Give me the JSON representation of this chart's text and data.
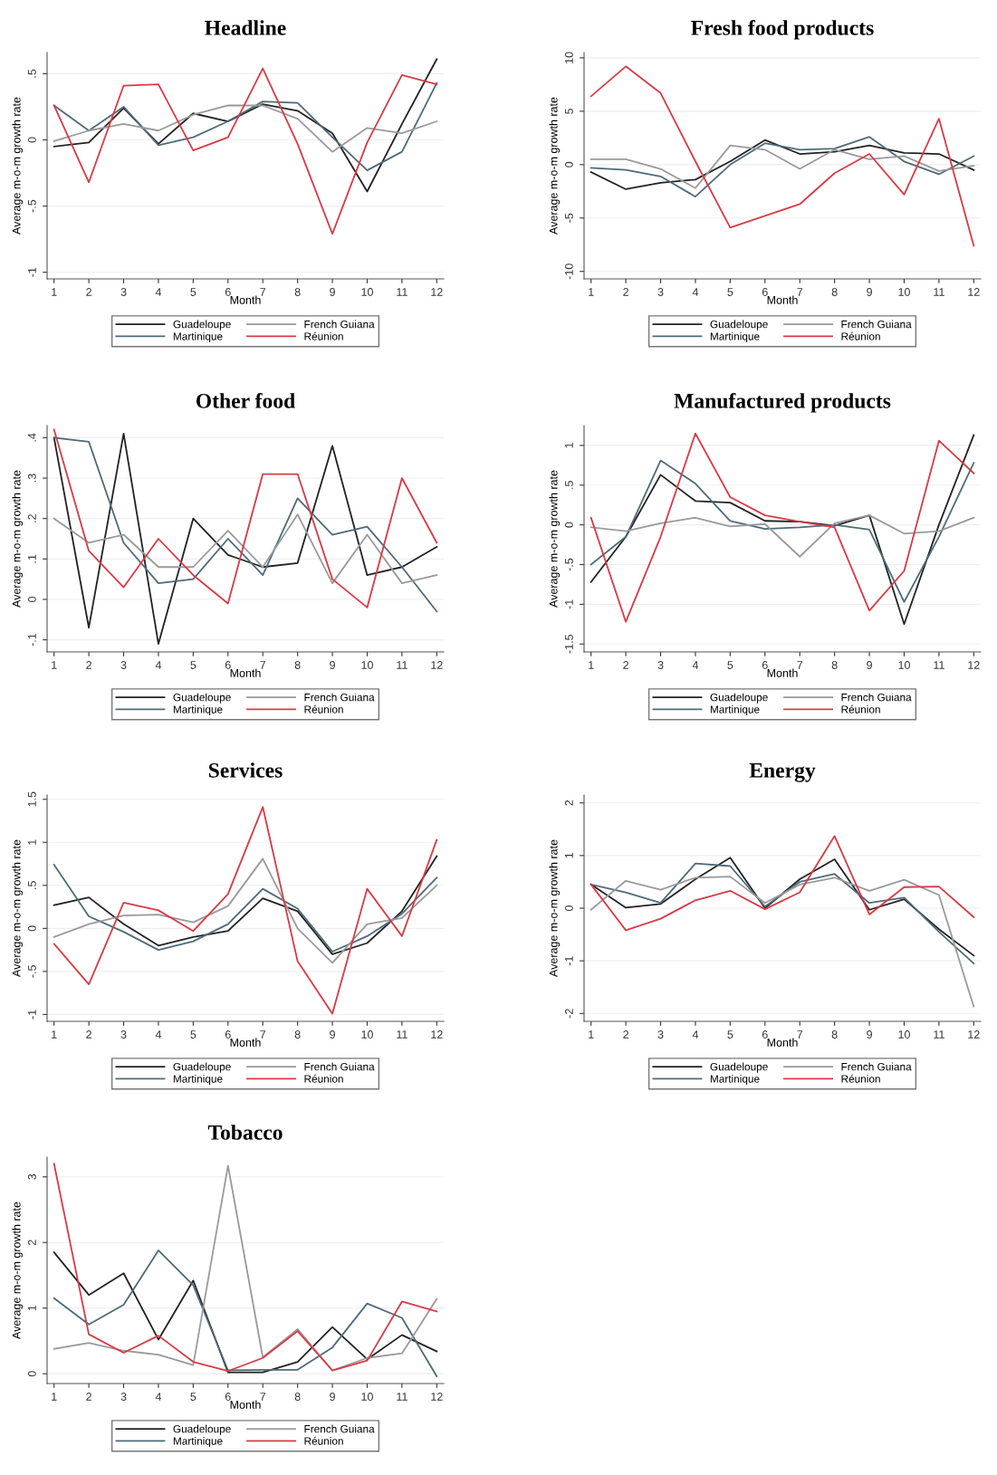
{
  "chart_data": [
    {
      "type": "line",
      "title": "Headline",
      "xlabel": "Month",
      "ylabel": "Average m-o-m growth rate",
      "x": [
        1,
        2,
        3,
        4,
        5,
        6,
        7,
        8,
        9,
        10,
        11,
        12
      ],
      "xlim": [
        0.8,
        12.2
      ],
      "xticks": [
        1,
        2,
        3,
        4,
        5,
        6,
        7,
        8,
        9,
        10,
        11,
        12
      ],
      "ylim": [
        -1.05,
        0.66
      ],
      "yticks": [
        {
          "value": -1,
          "label": "-1"
        },
        {
          "value": -0.5,
          "label": "-.5"
        },
        0,
        {
          "value": 0.5,
          "label": ".5"
        }
      ],
      "grid": "y",
      "legend": "bottom",
      "line_style": "solid",
      "series": [
        {
          "name": "Guadeloupe",
          "color": "#222222",
          "values": [
            -0.05,
            -0.02,
            0.24,
            -0.03,
            0.2,
            0.14,
            0.27,
            0.22,
            0.05,
            -0.39,
            0.12,
            0.61
          ]
        },
        {
          "name": "Martinique",
          "color": "#4d6b7a",
          "values": [
            0.26,
            0.07,
            0.25,
            -0.04,
            0.02,
            0.14,
            0.29,
            0.28,
            0.02,
            -0.23,
            -0.09,
            0.43
          ]
        },
        {
          "name": "French Guiana",
          "color": "#9a9a9a",
          "values": [
            -0.01,
            0.07,
            0.12,
            0.07,
            0.19,
            0.26,
            0.26,
            0.16,
            -0.09,
            0.09,
            0.05,
            0.14
          ]
        },
        {
          "name": "Réunion",
          "color": "#d93a45",
          "values": [
            0.26,
            -0.32,
            0.41,
            0.42,
            -0.08,
            0.02,
            0.54,
            -0.03,
            -0.71,
            -0.02,
            0.49,
            0.42
          ]
        }
      ]
    },
    {
      "type": "line",
      "title": "Fresh food products",
      "xlabel": "Month",
      "ylabel": "Average m-o-m growth rate",
      "x": [
        1,
        2,
        3,
        4,
        5,
        6,
        7,
        8,
        9,
        10,
        11,
        12
      ],
      "xlim": [
        0.8,
        12.2
      ],
      "xticks": [
        1,
        2,
        3,
        4,
        5,
        6,
        7,
        8,
        9,
        10,
        11,
        12
      ],
      "ylim": [
        -10.7,
        10.5
      ],
      "yticks": [
        -10,
        -5,
        0,
        5,
        10
      ],
      "grid": "y",
      "legend": "bottom",
      "line_style": "solid",
      "series": [
        {
          "name": "Guadeloupe",
          "color": "#222222",
          "values": [
            -0.7,
            -2.3,
            -1.7,
            -1.4,
            0.3,
            2.3,
            1.0,
            1.2,
            1.8,
            1.1,
            1.0,
            -0.5
          ]
        },
        {
          "name": "Martinique",
          "color": "#4d6b7a",
          "values": [
            -0.3,
            -0.5,
            -1.1,
            -3.0,
            0.0,
            2.0,
            1.4,
            1.5,
            2.6,
            0.3,
            -0.9,
            0.8
          ]
        },
        {
          "name": "French Guiana",
          "color": "#9a9a9a",
          "values": [
            0.5,
            0.5,
            -0.4,
            -2.2,
            1.8,
            1.4,
            -0.4,
            1.4,
            0.5,
            0.8,
            -0.6,
            -0.1
          ]
        },
        {
          "name": "Réunion",
          "color": "#d93a45",
          "values": [
            6.4,
            9.2,
            6.7,
            0.3,
            -5.9,
            -4.8,
            -3.7,
            -0.8,
            1.0,
            -2.8,
            4.3,
            -7.6
          ]
        }
      ]
    },
    {
      "type": "line",
      "title": "Other food",
      "xlabel": "Month",
      "ylabel": "Average m-o-m growth rate",
      "x": [
        1,
        2,
        3,
        4,
        5,
        6,
        7,
        8,
        9,
        10,
        11,
        12
      ],
      "xlim": [
        0.8,
        12.2
      ],
      "xticks": [
        1,
        2,
        3,
        4,
        5,
        6,
        7,
        8,
        9,
        10,
        11,
        12
      ],
      "ylim": [
        -0.13,
        0.43
      ],
      "yticks": [
        {
          "value": -0.1,
          "label": "-.1"
        },
        0,
        {
          "value": 0.1,
          "label": ".1"
        },
        {
          "value": 0.2,
          "label": ".2"
        },
        {
          "value": 0.3,
          "label": ".3"
        },
        {
          "value": 0.4,
          "label": ".4"
        }
      ],
      "grid": "y",
      "legend": "bottom",
      "line_style": "solid",
      "series": [
        {
          "name": "Guadeloupe",
          "color": "#222222",
          "values": [
            0.4,
            -0.07,
            0.41,
            -0.11,
            0.2,
            0.11,
            0.08,
            0.09,
            0.38,
            0.06,
            0.08,
            0.13
          ]
        },
        {
          "name": "Martinique",
          "color": "#4d6b7a",
          "values": [
            0.4,
            0.39,
            0.14,
            0.04,
            0.05,
            0.15,
            0.06,
            0.25,
            0.16,
            0.18,
            0.08,
            -0.03
          ]
        },
        {
          "name": "French Guiana",
          "color": "#9a9a9a",
          "values": [
            0.2,
            0.14,
            0.16,
            0.08,
            0.08,
            0.17,
            0.08,
            0.21,
            0.04,
            0.16,
            0.04,
            0.06
          ]
        },
        {
          "name": "Réunion",
          "color": "#d93a45",
          "values": [
            0.42,
            0.12,
            0.03,
            0.15,
            0.06,
            -0.01,
            0.31,
            0.31,
            0.05,
            -0.02,
            0.3,
            0.14
          ]
        }
      ]
    },
    {
      "type": "line",
      "title": "Manufactured products",
      "xlabel": "Month",
      "ylabel": "Average m-o-m growth rate",
      "x": [
        1,
        2,
        3,
        4,
        5,
        6,
        7,
        8,
        9,
        10,
        11,
        12
      ],
      "xlim": [
        0.8,
        12.2
      ],
      "xticks": [
        1,
        2,
        3,
        4,
        5,
        6,
        7,
        8,
        9,
        10,
        11,
        12
      ],
      "ylim": [
        -1.6,
        1.25
      ],
      "yticks": [
        {
          "value": -1.5,
          "label": "-1.5"
        },
        {
          "value": -1,
          "label": "-1"
        },
        {
          "value": -0.5,
          "label": "-.5"
        },
        0,
        {
          "value": 0.5,
          "label": ".5"
        },
        1
      ],
      "grid": "y",
      "legend": "bottom",
      "line_style": "solid",
      "series": [
        {
          "name": "Guadeloupe",
          "color": "#222222",
          "values": [
            -0.72,
            -0.15,
            0.63,
            0.3,
            0.28,
            0.05,
            0.04,
            -0.01,
            0.12,
            -1.25,
            0.0,
            1.13
          ]
        },
        {
          "name": "Martinique",
          "color": "#4d6b7a",
          "values": [
            -0.5,
            -0.15,
            0.81,
            0.52,
            0.05,
            -0.05,
            -0.03,
            0.0,
            -0.06,
            -0.97,
            -0.15,
            0.78
          ]
        },
        {
          "name": "French Guiana",
          "color": "#9a9a9a",
          "values": [
            -0.03,
            -0.08,
            0.02,
            0.09,
            -0.02,
            0.01,
            -0.4,
            0.02,
            0.12,
            -0.11,
            -0.08,
            0.09
          ]
        },
        {
          "name": "Réunion",
          "color": "#d93a45",
          "values": [
            0.09,
            -1.22,
            -0.15,
            1.15,
            0.35,
            0.12,
            0.04,
            -0.03,
            -1.08,
            -0.58,
            1.06,
            0.65
          ]
        }
      ]
    },
    {
      "type": "line",
      "title": "Services",
      "xlabel": "Month",
      "ylabel": "Average m-o-m growth rate",
      "x": [
        1,
        2,
        3,
        4,
        5,
        6,
        7,
        8,
        9,
        10,
        11,
        12
      ],
      "xlim": [
        0.8,
        12.2
      ],
      "xticks": [
        1,
        2,
        3,
        4,
        5,
        6,
        7,
        8,
        9,
        10,
        11,
        12
      ],
      "ylim": [
        -1.08,
        1.55
      ],
      "yticks": [
        {
          "value": -1,
          "label": "-1"
        },
        {
          "value": -0.5,
          "label": "-.5"
        },
        0,
        {
          "value": 0.5,
          "label": ".5"
        },
        1,
        1.5
      ],
      "grid": "y",
      "legend": "bottom",
      "line_style": "solid",
      "series": [
        {
          "name": "Guadeloupe",
          "color": "#222222",
          "values": [
            0.27,
            0.36,
            0.05,
            -0.2,
            -0.1,
            -0.03,
            0.35,
            0.2,
            -0.3,
            -0.17,
            0.2,
            0.84
          ]
        },
        {
          "name": "Martinique",
          "color": "#4d6b7a",
          "values": [
            0.74,
            0.14,
            -0.04,
            -0.25,
            -0.15,
            0.05,
            0.46,
            0.23,
            -0.27,
            -0.09,
            0.17,
            0.59
          ]
        },
        {
          "name": "French Guiana",
          "color": "#9a9a9a",
          "values": [
            -0.1,
            0.05,
            0.15,
            0.16,
            0.07,
            0.26,
            0.81,
            0.0,
            -0.4,
            0.05,
            0.12,
            0.5
          ]
        },
        {
          "name": "Réunion",
          "color": "#d93a45",
          "values": [
            -0.18,
            -0.65,
            0.3,
            0.21,
            -0.03,
            0.4,
            1.41,
            -0.38,
            -0.99,
            0.46,
            -0.09,
            1.03
          ]
        }
      ]
    },
    {
      "type": "line",
      "title": "Energy",
      "xlabel": "Month",
      "ylabel": "Average m-o-m growth rate",
      "x": [
        1,
        2,
        3,
        4,
        5,
        6,
        7,
        8,
        9,
        10,
        11,
        12
      ],
      "xlim": [
        0.8,
        12.2
      ],
      "xticks": [
        1,
        2,
        3,
        4,
        5,
        6,
        7,
        8,
        9,
        10,
        11,
        12
      ],
      "ylim": [
        -2.15,
        2.15
      ],
      "yticks": [
        -2,
        -1,
        0,
        1,
        2
      ],
      "grid": "y",
      "legend": "bottom",
      "line_style": "solid",
      "series": [
        {
          "name": "Guadeloupe",
          "color": "#222222",
          "values": [
            0.45,
            0.01,
            0.08,
            0.55,
            0.96,
            0.0,
            0.55,
            0.93,
            -0.03,
            0.17,
            -0.4,
            -0.9
          ]
        },
        {
          "name": "Martinique",
          "color": "#4d6b7a",
          "values": [
            0.45,
            0.3,
            0.1,
            0.85,
            0.8,
            0.03,
            0.5,
            0.65,
            0.1,
            0.2,
            -0.45,
            -1.05
          ]
        },
        {
          "name": "French Guiana",
          "color": "#9a9a9a",
          "values": [
            -0.03,
            0.52,
            0.35,
            0.58,
            0.6,
            0.1,
            0.45,
            0.58,
            0.33,
            0.54,
            0.25,
            -1.87
          ]
        },
        {
          "name": "Réunion",
          "color": "#d93a45",
          "values": [
            0.45,
            -0.42,
            -0.2,
            0.15,
            0.33,
            -0.02,
            0.3,
            1.37,
            -0.12,
            0.4,
            0.41,
            -0.17
          ]
        }
      ]
    },
    {
      "type": "line",
      "title": "Tobacco",
      "xlabel": "Month",
      "ylabel": "Average m-o-m growth rate",
      "x": [
        1,
        2,
        3,
        4,
        5,
        6,
        7,
        8,
        9,
        10,
        11,
        12
      ],
      "xlim": [
        0.8,
        12.2
      ],
      "xticks": [
        1,
        2,
        3,
        4,
        5,
        6,
        7,
        8,
        9,
        10,
        11,
        12
      ],
      "ylim": [
        -0.15,
        3.3
      ],
      "yticks": [
        0,
        1,
        2,
        3
      ],
      "grid": "y",
      "legend": "bottom",
      "line_style": "solid",
      "series": [
        {
          "name": "Guadeloupe",
          "color": "#222222",
          "values": [
            1.85,
            1.2,
            1.53,
            0.52,
            1.42,
            0.02,
            0.02,
            0.18,
            0.71,
            0.22,
            0.59,
            0.34
          ]
        },
        {
          "name": "Martinique",
          "color": "#4d6b7a",
          "values": [
            1.15,
            0.75,
            1.05,
            1.88,
            1.35,
            0.05,
            0.06,
            0.06,
            0.4,
            1.07,
            0.85,
            -0.04
          ]
        },
        {
          "name": "French Guiana",
          "color": "#9a9a9a",
          "values": [
            0.38,
            0.47,
            0.35,
            0.29,
            0.13,
            3.17,
            0.25,
            0.68,
            0.05,
            0.24,
            0.31,
            1.14
          ]
        },
        {
          "name": "Réunion",
          "color": "#d93a45",
          "values": [
            3.2,
            0.6,
            0.32,
            0.58,
            0.18,
            0.04,
            0.24,
            0.65,
            0.05,
            0.2,
            1.1,
            0.95
          ]
        }
      ]
    }
  ]
}
